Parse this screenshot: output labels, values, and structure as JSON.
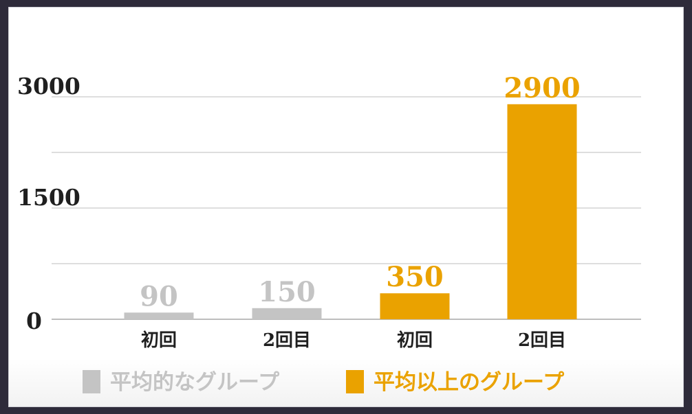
{
  "chart_data": {
    "type": "bar",
    "categories": [
      "初回",
      "2回目",
      "初回",
      "2回目"
    ],
    "values": [
      90,
      150,
      350,
      2900
    ],
    "series_of_bar": [
      0,
      0,
      1,
      1
    ],
    "series": [
      {
        "name": "平均的なグループ",
        "color": "#c4c4c4"
      },
      {
        "name": "平均以上のグループ",
        "color": "#eaa200"
      }
    ],
    "yticks": [
      0,
      1500,
      3000
    ],
    "ylim": [
      0,
      3000
    ],
    "grid": true,
    "legend_position": "bottom"
  }
}
